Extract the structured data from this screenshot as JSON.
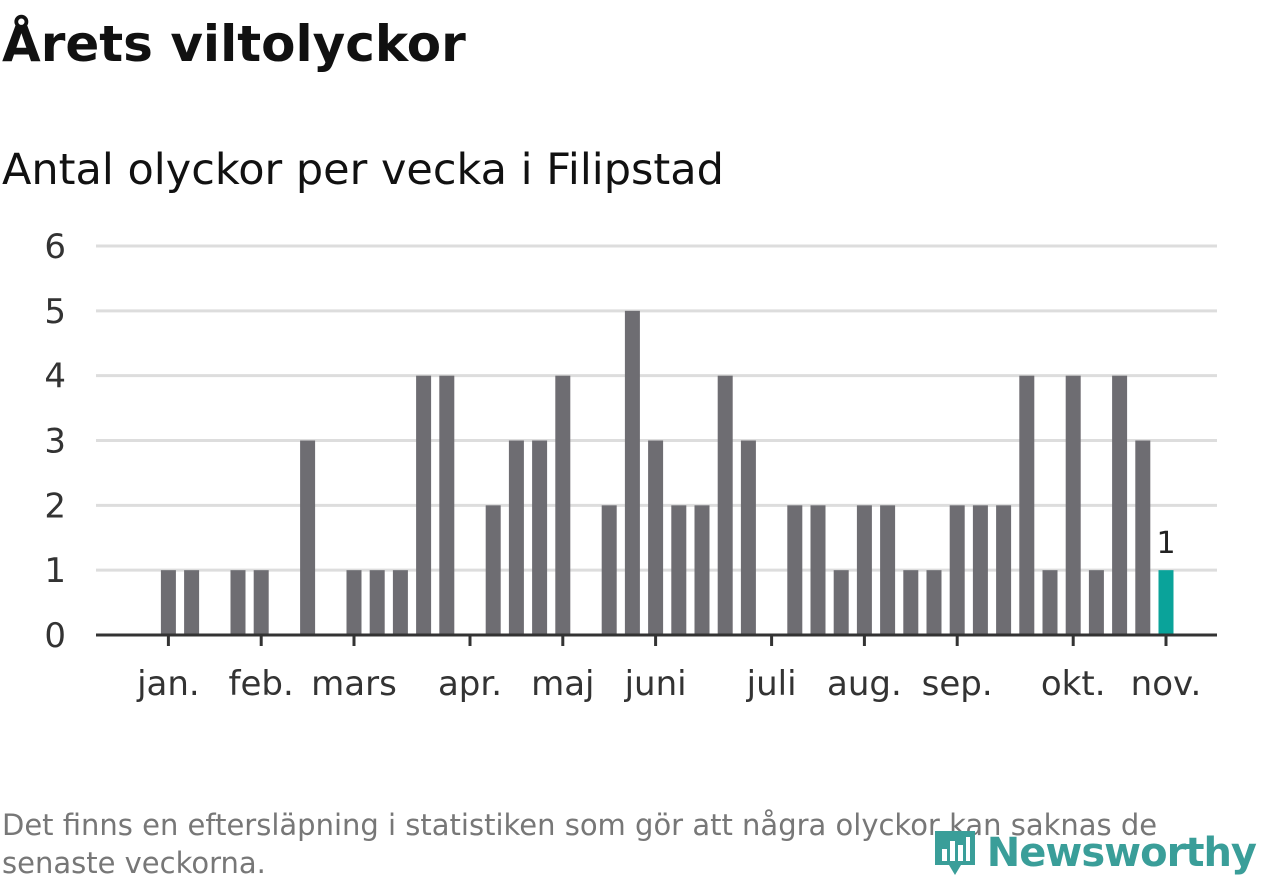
{
  "title": "Årets viltolyckor",
  "subtitle": "Antal olyckor per vecka i Filipstad",
  "footnote": "Det finns en eftersläpning i statistiken som gör att några olyckor kan saknas de senaste veckorna.",
  "logo": {
    "text": "Newsworthy",
    "icon": "bar-chart-pin-icon"
  },
  "colors": {
    "bar": "#6e6d72",
    "highlight": "#0aa39a",
    "grid": "#dddddd",
    "axis": "#333333",
    "logo": "#3a9e99"
  },
  "chart_data": {
    "type": "bar",
    "title": "Antal olyckor per vecka i Filipstad",
    "xlabel": "",
    "ylabel": "",
    "ylim": [
      0,
      6
    ],
    "yticks": [
      0,
      1,
      2,
      3,
      4,
      5,
      6
    ],
    "grid": true,
    "week_slots": 48,
    "values": [
      0,
      0,
      1,
      1,
      0,
      1,
      1,
      0,
      3,
      0,
      1,
      1,
      1,
      4,
      4,
      0,
      2,
      3,
      3,
      4,
      0,
      2,
      5,
      3,
      2,
      2,
      4,
      3,
      0,
      2,
      2,
      1,
      2,
      2,
      1,
      1,
      2,
      2,
      2,
      4,
      1,
      4,
      1,
      4,
      3,
      1,
      0,
      0
    ],
    "highlight_index": 45,
    "highlight_label": "1",
    "month_ticks": [
      {
        "label": "jan.",
        "slot": 2.5
      },
      {
        "label": "feb.",
        "slot": 6.5
      },
      {
        "label": "mars",
        "slot": 10.5
      },
      {
        "label": "apr.",
        "slot": 15.5
      },
      {
        "label": "maj",
        "slot": 19.5
      },
      {
        "label": "juni",
        "slot": 23.5
      },
      {
        "label": "juli",
        "slot": 28.5
      },
      {
        "label": "aug.",
        "slot": 32.5
      },
      {
        "label": "sep.",
        "slot": 36.5
      },
      {
        "label": "okt.",
        "slot": 41.5
      },
      {
        "label": "nov.",
        "slot": 45.5
      }
    ]
  }
}
